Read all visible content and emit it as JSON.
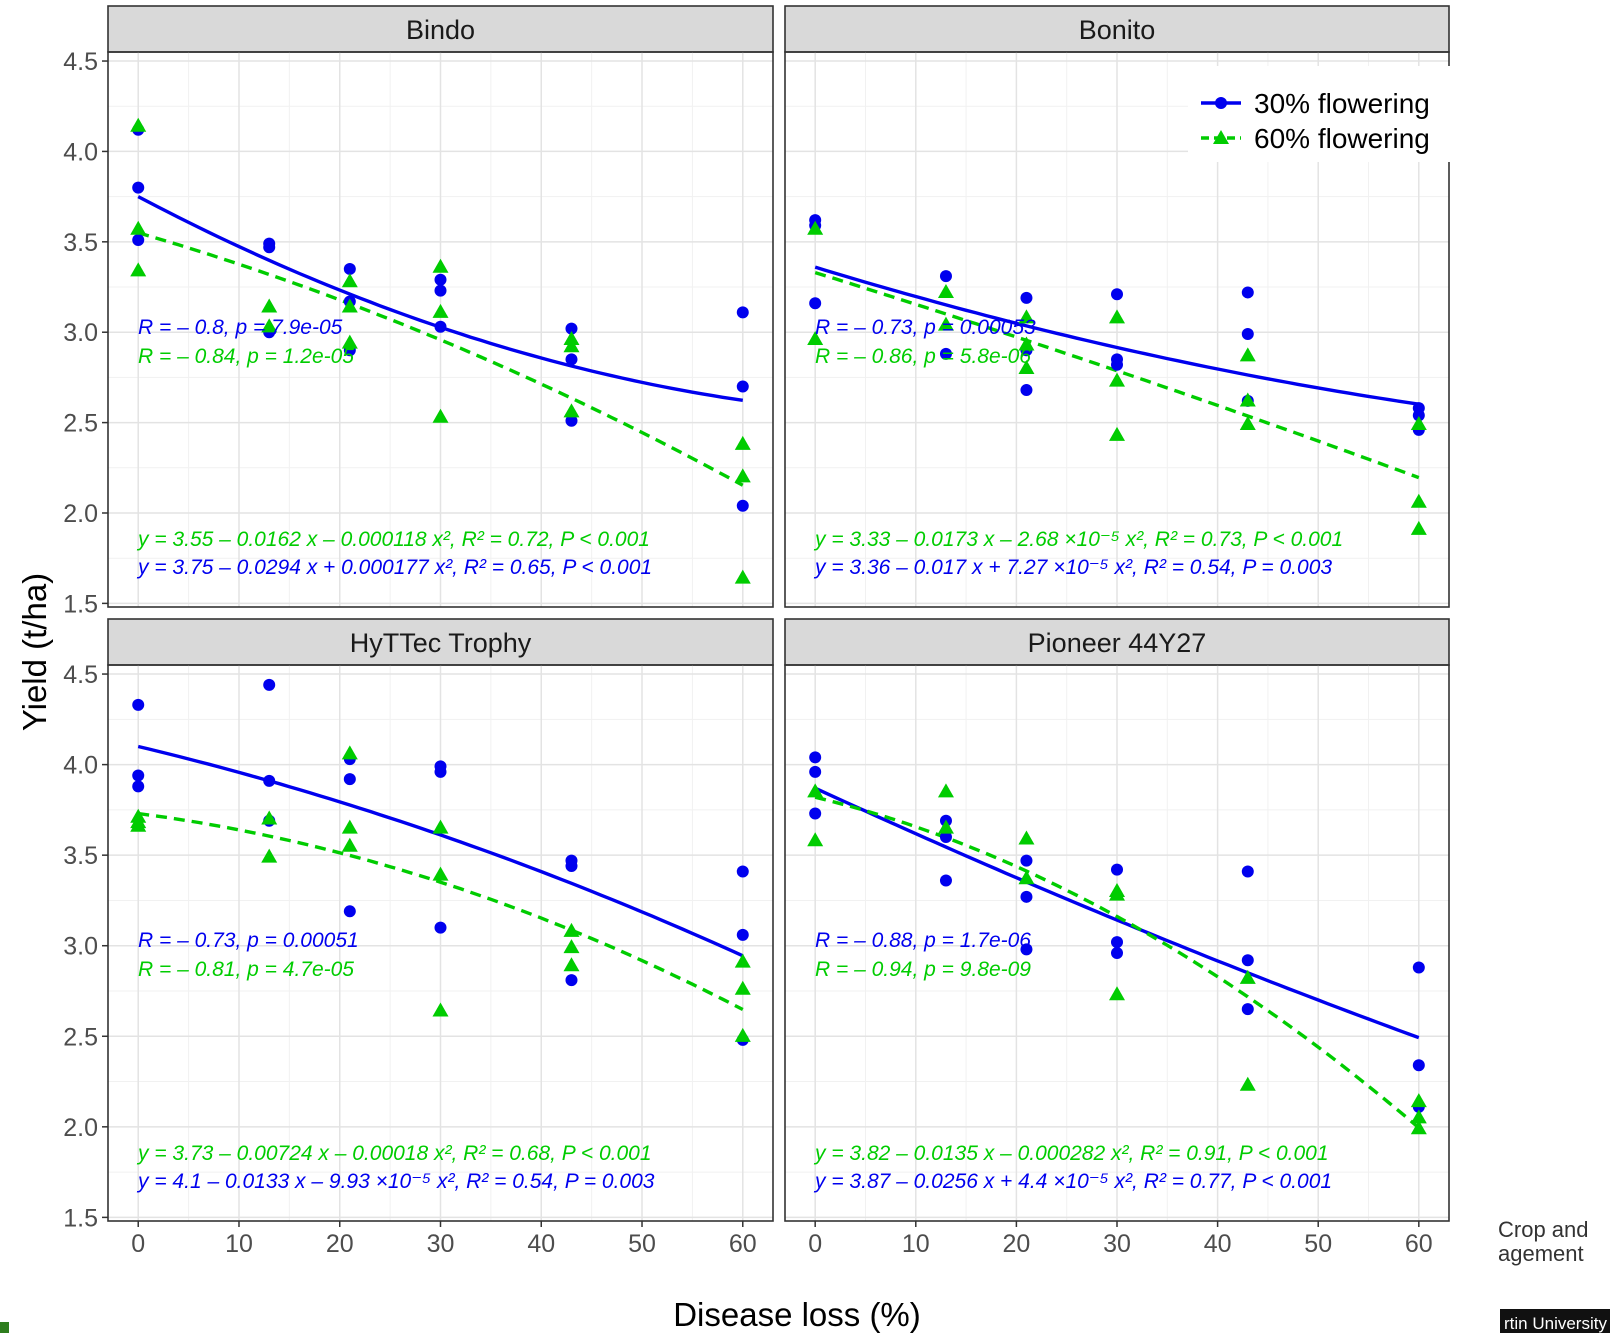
{
  "colors": {
    "flower30": "#0000ee",
    "flower60": "#00cc00",
    "strip_bg": "#d9d9d9",
    "grid_major": "#e3e3e3",
    "grid_minor": "#f1f1f1",
    "panel_border": "#333333",
    "corner_accent": "#2e7d1e"
  },
  "chart_data": {
    "type": "scatter",
    "facets": [
      "Bindo",
      "Bonito",
      "HyTTec Trophy",
      "Pioneer 44Y27"
    ],
    "xlabel": "Disease loss (%)",
    "ylabel": "Yield (t/ha)",
    "xlim": [
      -3,
      63
    ],
    "ylim": [
      1.48,
      4.55
    ],
    "x_ticks": [
      0,
      10,
      20,
      30,
      40,
      50,
      60
    ],
    "y_ticks": [
      1.5,
      2.0,
      2.5,
      3.0,
      3.5,
      4.0,
      4.5
    ],
    "x_tick_labels": [
      "0",
      "10",
      "20",
      "30",
      "40",
      "50",
      "60"
    ],
    "y_tick_labels": [
      "1.5",
      "2.0",
      "2.5",
      "3.0",
      "3.5",
      "4.0",
      "4.5"
    ],
    "grid": true,
    "legend": {
      "position": "top-right",
      "entries": [
        {
          "label": "30% flowering",
          "color": "#0000ee",
          "marker": "circle",
          "line": "solid"
        },
        {
          "label": "60% flowering",
          "color": "#00cc00",
          "marker": "triangle",
          "line": "dashed"
        }
      ]
    },
    "panels": [
      {
        "name": "Bindo",
        "series": [
          {
            "name": "30% flowering",
            "points": [
              [
                0,
                4.12
              ],
              [
                0,
                3.8
              ],
              [
                0,
                3.51
              ],
              [
                13,
                3.49
              ],
              [
                13,
                3.47
              ],
              [
                13,
                3.0
              ],
              [
                21,
                3.35
              ],
              [
                21,
                3.17
              ],
              [
                21,
                2.9
              ],
              [
                30,
                3.29
              ],
              [
                30,
                3.23
              ],
              [
                30,
                3.03
              ],
              [
                43,
                3.02
              ],
              [
                43,
                2.85
              ],
              [
                43,
                2.51
              ],
              [
                60,
                3.11
              ],
              [
                60,
                2.7
              ],
              [
                60,
                2.04
              ]
            ],
            "fit": {
              "a": 3.75,
              "b": -0.0294,
              "c": 0.000177
            }
          },
          {
            "name": "60% flowering",
            "points": [
              [
                0,
                4.14
              ],
              [
                0,
                3.57
              ],
              [
                0,
                3.34
              ],
              [
                13,
                3.14
              ],
              [
                13,
                3.03
              ],
              [
                21,
                3.28
              ],
              [
                21,
                3.14
              ],
              [
                21,
                2.94
              ],
              [
                30,
                3.36
              ],
              [
                30,
                3.11
              ],
              [
                30,
                2.53
              ],
              [
                43,
                2.96
              ],
              [
                43,
                2.92
              ],
              [
                43,
                2.56
              ],
              [
                60,
                2.38
              ],
              [
                60,
                2.2
              ],
              [
                60,
                1.64
              ]
            ],
            "fit": {
              "a": 3.55,
              "b": -0.0162,
              "c": -0.000118
            }
          }
        ],
        "annotations": {
          "r30": "R = – 0.8, p = 7.9e-05",
          "r60": "R = – 0.84, p = 1.2e-05",
          "eq60": "y = 3.55 – 0.0162 x – 0.000118 x², R² = 0.72, P < 0.001",
          "eq30": "y = 3.75 – 0.0294 x + 0.000177 x², R² = 0.65, P < 0.001"
        }
      },
      {
        "name": "Bonito",
        "series": [
          {
            "name": "30% flowering",
            "points": [
              [
                0,
                3.62
              ],
              [
                0,
                3.59
              ],
              [
                0,
                3.16
              ],
              [
                13,
                3.31
              ],
              [
                13,
                2.88
              ],
              [
                21,
                3.19
              ],
              [
                21,
                2.9
              ],
              [
                21,
                2.68
              ],
              [
                30,
                3.21
              ],
              [
                30,
                2.85
              ],
              [
                30,
                2.82
              ],
              [
                43,
                3.22
              ],
              [
                43,
                2.99
              ],
              [
                43,
                2.62
              ],
              [
                60,
                2.58
              ],
              [
                60,
                2.54
              ],
              [
                60,
                2.46
              ]
            ],
            "fit": {
              "a": 3.36,
              "b": -0.017,
              "c": 7.27e-05
            }
          },
          {
            "name": "60% flowering",
            "points": [
              [
                0,
                3.57
              ],
              [
                0,
                2.96
              ],
              [
                13,
                3.22
              ],
              [
                13,
                3.04
              ],
              [
                21,
                3.08
              ],
              [
                21,
                2.93
              ],
              [
                21,
                2.8
              ],
              [
                30,
                3.08
              ],
              [
                30,
                2.73
              ],
              [
                30,
                2.43
              ],
              [
                43,
                2.87
              ],
              [
                43,
                2.62
              ],
              [
                43,
                2.49
              ],
              [
                60,
                2.49
              ],
              [
                60,
                2.06
              ],
              [
                60,
                1.91
              ]
            ],
            "fit": {
              "a": 3.33,
              "b": -0.0173,
              "c": -2.68e-05
            }
          }
        ],
        "annotations": {
          "r30": "R = – 0.73, p = 0.00053",
          "r60": "R = – 0.86, p = 5.8e-06",
          "eq60": "y = 3.33 – 0.0173 x – 2.68 ×10⁻⁵ x², R² = 0.73, P < 0.001",
          "eq30": "y = 3.36 – 0.017 x + 7.27 ×10⁻⁵ x², R² = 0.54, P = 0.003"
        }
      },
      {
        "name": "HyTTec Trophy",
        "series": [
          {
            "name": "30% flowering",
            "points": [
              [
                0,
                4.33
              ],
              [
                0,
                3.94
              ],
              [
                0,
                3.88
              ],
              [
                13,
                4.44
              ],
              [
                13,
                3.91
              ],
              [
                13,
                3.69
              ],
              [
                21,
                4.03
              ],
              [
                21,
                3.92
              ],
              [
                21,
                3.19
              ],
              [
                30,
                3.99
              ],
              [
                30,
                3.96
              ],
              [
                30,
                3.1
              ],
              [
                43,
                3.47
              ],
              [
                43,
                3.44
              ],
              [
                43,
                2.81
              ],
              [
                60,
                3.41
              ],
              [
                60,
                3.06
              ],
              [
                60,
                2.48
              ]
            ],
            "fit": {
              "a": 4.1,
              "b": -0.0133,
              "c": -9.93e-05
            }
          },
          {
            "name": "60% flowering",
            "points": [
              [
                0,
                3.71
              ],
              [
                0,
                3.68
              ],
              [
                0,
                3.66
              ],
              [
                13,
                3.7
              ],
              [
                13,
                3.49
              ],
              [
                21,
                4.06
              ],
              [
                21,
                3.65
              ],
              [
                21,
                3.55
              ],
              [
                30,
                3.65
              ],
              [
                30,
                3.39
              ],
              [
                30,
                2.64
              ],
              [
                43,
                3.08
              ],
              [
                43,
                2.99
              ],
              [
                43,
                2.89
              ],
              [
                60,
                2.91
              ],
              [
                60,
                2.76
              ],
              [
                60,
                2.5
              ]
            ],
            "fit": {
              "a": 3.73,
              "b": -0.00724,
              "c": -0.00018
            }
          }
        ],
        "annotations": {
          "r30": "R = – 0.73, p = 0.00051",
          "r60": "R = – 0.81, p = 4.7e-05",
          "eq60": "y = 3.73 – 0.00724 x – 0.00018 x², R² = 0.68, P < 0.001",
          "eq30": "y = 4.1 – 0.0133 x – 9.93 ×10⁻⁵ x², R² = 0.54, P = 0.003"
        }
      },
      {
        "name": "Pioneer 44Y27",
        "series": [
          {
            "name": "30% flowering",
            "points": [
              [
                0,
                4.04
              ],
              [
                0,
                3.96
              ],
              [
                0,
                3.73
              ],
              [
                13,
                3.69
              ],
              [
                13,
                3.6
              ],
              [
                13,
                3.36
              ],
              [
                21,
                3.47
              ],
              [
                21,
                3.27
              ],
              [
                21,
                2.98
              ],
              [
                30,
                3.42
              ],
              [
                30,
                3.02
              ],
              [
                30,
                2.96
              ],
              [
                43,
                3.41
              ],
              [
                43,
                2.92
              ],
              [
                43,
                2.65
              ],
              [
                60,
                2.88
              ],
              [
                60,
                2.34
              ],
              [
                60,
                2.11
              ]
            ],
            "fit": {
              "a": 3.87,
              "b": -0.0256,
              "c": 4.4e-05
            }
          },
          {
            "name": "60% flowering",
            "points": [
              [
                0,
                3.85
              ],
              [
                0,
                3.58
              ],
              [
                13,
                3.85
              ],
              [
                13,
                3.65
              ],
              [
                21,
                3.59
              ],
              [
                21,
                3.37
              ],
              [
                30,
                3.3
              ],
              [
                30,
                3.28
              ],
              [
                30,
                2.73
              ],
              [
                43,
                2.82
              ],
              [
                43,
                2.23
              ],
              [
                60,
                2.14
              ],
              [
                60,
                2.05
              ],
              [
                60,
                1.99
              ]
            ],
            "fit": {
              "a": 3.82,
              "b": -0.0135,
              "c": -0.000282
            }
          }
        ],
        "annotations": {
          "r30": "R = – 0.88, p = 1.7e-06",
          "r60": "R = – 0.94, p = 9.8e-09",
          "eq60": "y = 3.82 – 0.0135 x – 0.000282 x², R² = 0.91, P < 0.001",
          "eq30": "y = 3.87 – 0.0256 x + 4.4 ×10⁻⁵ x², R² = 0.77, P < 0.001"
        }
      }
    ]
  },
  "corner_text": {
    "line1": "Crop and",
    "line2": "agement",
    "line3": "rtin University"
  }
}
